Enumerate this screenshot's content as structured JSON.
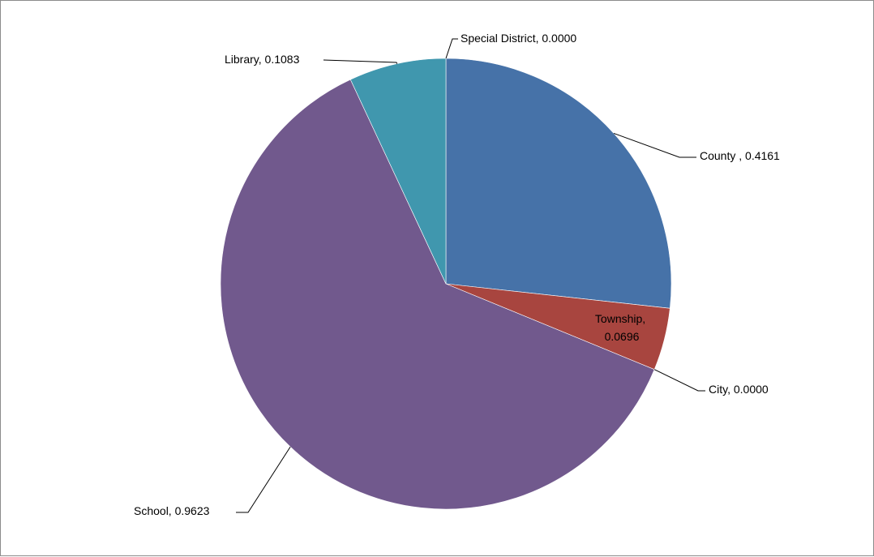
{
  "chart_data": {
    "type": "pie",
    "title": "",
    "start_angle_deg": 0,
    "direction": "clockwise",
    "slices": [
      {
        "name": "County ",
        "value": 0.4161,
        "label": "County , 0.4161",
        "color": "#4672A8"
      },
      {
        "name": "Township",
        "value": 0.0696,
        "label_lines": [
          "Township,",
          "0.0696"
        ],
        "color": "#A8453F"
      },
      {
        "name": "City",
        "value": 0.0,
        "label": "City, 0.0000",
        "color": "#7F9C3E"
      },
      {
        "name": "School",
        "value": 0.9623,
        "label": "School, 0.9623",
        "color": "#71598D"
      },
      {
        "name": "Library",
        "value": 0.1083,
        "label": "Library, 0.1083",
        "color": "#4097AE"
      },
      {
        "name": "Special District",
        "value": 0.0,
        "label": "Special District, 0.0000",
        "color": "#E0893A"
      }
    ],
    "legend": "none"
  }
}
